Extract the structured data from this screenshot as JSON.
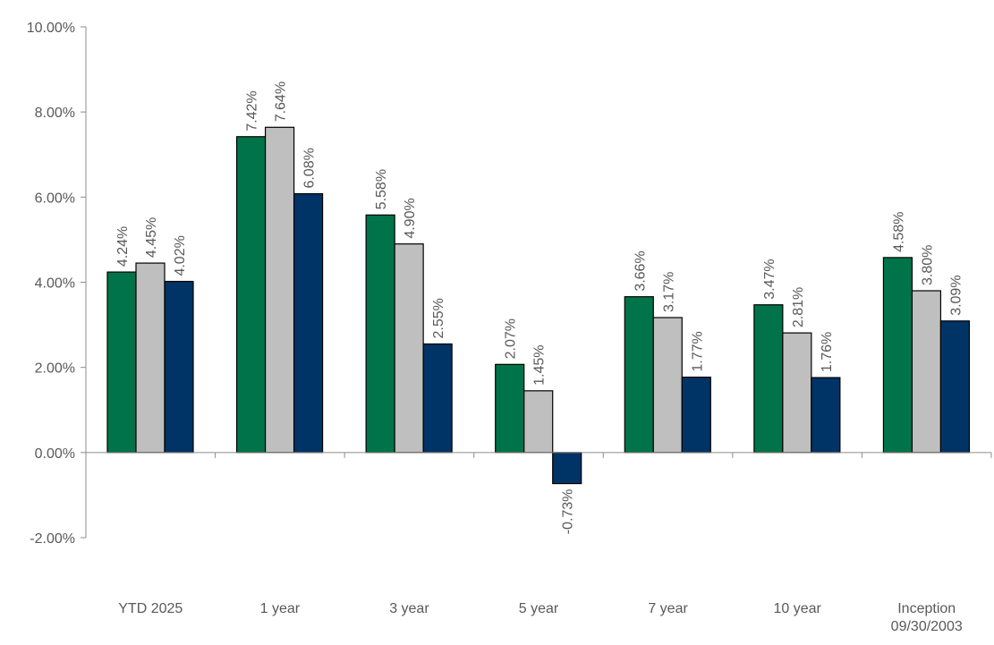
{
  "chart_data": {
    "type": "bar",
    "title": "",
    "xlabel": "",
    "ylabel": "",
    "ylim": [
      -2,
      10
    ],
    "yticks": [
      -2,
      0,
      2,
      4,
      6,
      8,
      10
    ],
    "ytick_labels": [
      "-2.00%",
      "0.00%",
      "2.00%",
      "4.00%",
      "6.00%",
      "8.00%",
      "10.00%"
    ],
    "grid": false,
    "legend": "none",
    "categories": [
      [
        "YTD 2025"
      ],
      [
        "1 year"
      ],
      [
        "3 year"
      ],
      [
        "5 year"
      ],
      [
        "7 year"
      ],
      [
        "10 year"
      ],
      [
        "Inception",
        "09/30/2003"
      ]
    ],
    "series": [
      {
        "color": "#00734a",
        "values": [
          4.24,
          7.42,
          5.58,
          2.07,
          3.66,
          3.47,
          4.58
        ],
        "labels": [
          "4.24%",
          "7.42%",
          "5.58%",
          "2.07%",
          "3.66%",
          "3.47%",
          "4.58%"
        ]
      },
      {
        "color": "#bfbfbf",
        "values": [
          4.45,
          7.64,
          4.9,
          1.45,
          3.17,
          2.81,
          3.8
        ],
        "labels": [
          "4.45%",
          "7.64%",
          "4.90%",
          "1.45%",
          "3.17%",
          "2.81%",
          "3.80%"
        ]
      },
      {
        "color": "#003366",
        "values": [
          4.02,
          6.08,
          2.55,
          -0.73,
          1.77,
          1.76,
          3.09
        ],
        "labels": [
          "4.02%",
          "6.08%",
          "2.55%",
          "-0.73%",
          "1.77%",
          "1.76%",
          "3.09%"
        ]
      }
    ]
  }
}
